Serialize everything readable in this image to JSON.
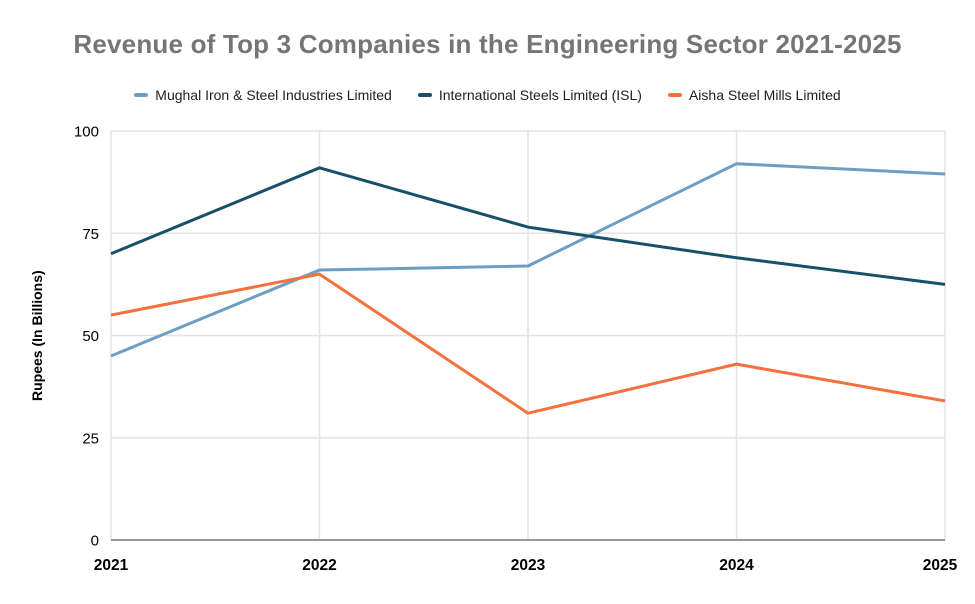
{
  "chart_data": {
    "type": "line",
    "title": "Revenue of Top 3 Companies in the Engineering Sector 2021-2025",
    "xlabel": "",
    "ylabel": "Rupees (In Billions)",
    "categories": [
      "2021",
      "2022",
      "2023",
      "2024",
      "2025"
    ],
    "series": [
      {
        "name": "Mughal Iron & Steel Industries Limited",
        "color": "#6d9fc2",
        "values": [
          45,
          66,
          67,
          92,
          89.5
        ]
      },
      {
        "name": "International Steels Limited (ISL)",
        "color": "#175069",
        "values": [
          70,
          91,
          76.5,
          69,
          62.5
        ]
      },
      {
        "name": "Aisha Steel Mills Limited",
        "color": "#f3713f",
        "values": [
          55,
          65,
          31,
          43,
          34
        ]
      }
    ],
    "ylim": [
      0,
      100
    ],
    "yticks": [
      0,
      25,
      50,
      75,
      100
    ],
    "grid": true,
    "legend_position": "top",
    "colors": {
      "title_text": "#757575",
      "legend_text": "#212121",
      "axis_text": "#000000",
      "gridline": "#e3e3e3",
      "baseline": "#999999",
      "background": "#ffffff"
    }
  }
}
